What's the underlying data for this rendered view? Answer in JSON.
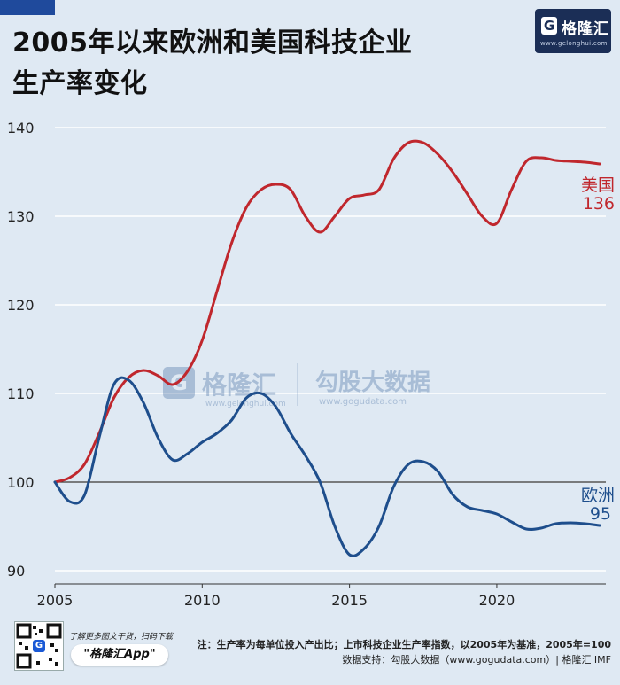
{
  "header": {
    "title_line1": "2005年以来欧洲和美国科技企业",
    "title_line2": "生产率变化",
    "logo_text": "格隆汇",
    "logo_url": "www.gelonghui.com"
  },
  "watermark": {
    "brand": "格隆汇",
    "brand_url": "www.gelonghui.com",
    "partner": "勾股大数据",
    "partner_url": "www.gogudata.com"
  },
  "chart_data": {
    "type": "line",
    "title": "2005年以来欧洲和美国科技企业生产率变化",
    "xlabel": "",
    "ylabel": "",
    "xlim": [
      2005,
      2023.7
    ],
    "ylim": [
      88.5,
      142
    ],
    "x_ticks": [
      2005,
      2010,
      2015,
      2020
    ],
    "y_ticks": [
      90,
      100,
      110,
      120,
      130,
      140
    ],
    "baseline": 100,
    "grid": true,
    "series": [
      {
        "name": "美国",
        "end_label": "136",
        "color": "#c0272d",
        "x": [
          2005,
          2005.5,
          2006,
          2006.5,
          2007,
          2007.5,
          2008,
          2008.5,
          2009,
          2009.5,
          2010,
          2010.5,
          2011,
          2011.5,
          2012,
          2012.5,
          2013,
          2013.5,
          2014,
          2014.5,
          2015,
          2015.5,
          2016,
          2016.5,
          2017,
          2017.5,
          2018,
          2018.5,
          2019,
          2019.5,
          2020,
          2020.5,
          2021,
          2021.5,
          2022,
          2022.5,
          2023,
          2023.5
        ],
        "values": [
          100,
          100.5,
          102,
          105.5,
          109.5,
          111.8,
          112.6,
          112,
          111,
          112.5,
          116,
          121.5,
          127,
          131,
          133,
          133.6,
          133,
          130,
          128.2,
          130,
          132,
          132.4,
          133,
          136.5,
          138.3,
          138.3,
          137,
          135,
          132.5,
          130,
          129.2,
          133,
          136.2,
          136.6,
          136.3,
          136.2,
          136.1,
          135.9
        ]
      },
      {
        "name": "欧洲",
        "end_label": "95",
        "color": "#1e4e8c",
        "x": [
          2005,
          2005.5,
          2006,
          2006.5,
          2007,
          2007.5,
          2008,
          2008.5,
          2009,
          2009.5,
          2010,
          2010.5,
          2011,
          2011.5,
          2012,
          2012.5,
          2013,
          2013.5,
          2014,
          2014.5,
          2015,
          2015.5,
          2016,
          2016.5,
          2017,
          2017.5,
          2018,
          2018.5,
          2019,
          2019.5,
          2020,
          2020.5,
          2021,
          2021.5,
          2022,
          2022.5,
          2023,
          2023.5
        ],
        "values": [
          100,
          97.8,
          98.5,
          105,
          111,
          111.5,
          109,
          105,
          102.5,
          103.2,
          104.5,
          105.5,
          107,
          109.5,
          110,
          108.5,
          105.5,
          103,
          100,
          95,
          91.8,
          92.5,
          95,
          99.5,
          102,
          102.3,
          101.2,
          98.6,
          97.2,
          96.8,
          96.4,
          95.5,
          94.7,
          94.8,
          95.3,
          95.4,
          95.3,
          95.1
        ]
      }
    ]
  },
  "footer": {
    "cta_text": "了解更多图文干货，扫码下载",
    "app_name": "\"格隆汇App\"",
    "qr_icon": "G",
    "note": "注：生产率为每单位投入产出比；上市科技企业生产率指数，以2005年为基准，2005年=100",
    "source": "数据支持：勾股大数据（www.gogudata.com）| 格隆汇 IMF"
  }
}
